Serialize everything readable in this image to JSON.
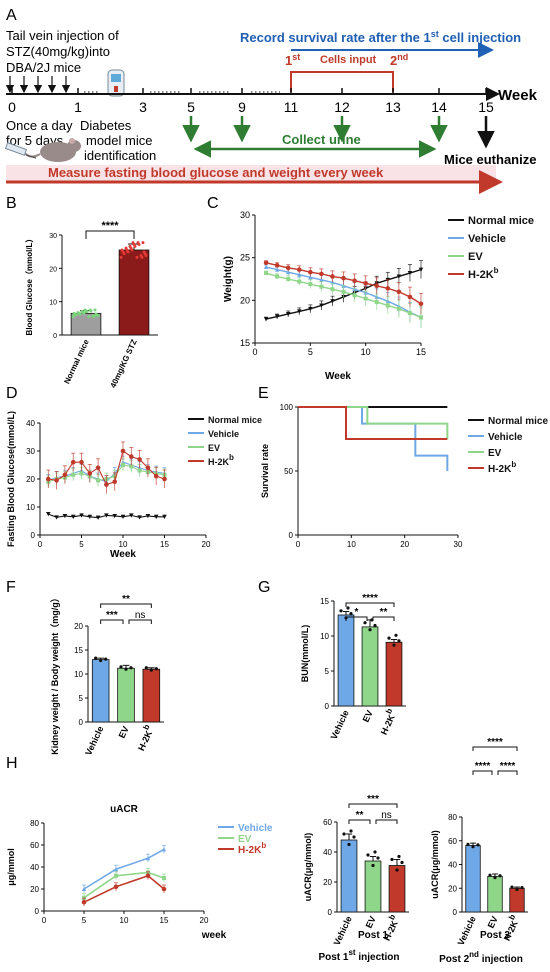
{
  "colors": {
    "normal": "#111111",
    "vehicle": "#6fa8e6",
    "ev": "#8fd68a",
    "h2kb": "#c0392b",
    "timeline_blue": "#1f5fb4",
    "timeline_red": "#c0392b",
    "timeline_green": "#2e7d32",
    "bar_normal": "#9e9e9e",
    "bar_stz": "#8b1a1a"
  },
  "panel_labels": {
    "a": "A",
    "b": "B",
    "c": "C",
    "d": "D",
    "e": "E",
    "f": "F",
    "g": "G",
    "h": "H"
  },
  "timeline": {
    "line1": "Tail vein injection of",
    "line2": "STZ(40mg/kg)into",
    "line3": "DBA/2J mice",
    "record": "Record survival rate after the 1",
    "record_sup": "st",
    "record_tail": " cell injection",
    "first": "1",
    "first_sup": "st",
    "cells_input": "Cells input",
    "second": "2",
    "second_sup": "nd",
    "week_label": "Week",
    "ticks": [
      "0",
      "1",
      "3",
      "5",
      "9",
      "11",
      "12",
      "13",
      "14",
      "15"
    ],
    "once": "Once a day",
    "days": "for 5 days",
    "diab1": "Diabetes",
    "diab2": "model mice",
    "diab3": "identification",
    "collect": "Collect urine",
    "euth": "Mice euthanize",
    "measure": "Measure fasting blood glucose and weight every week"
  },
  "chart_data": [
    {
      "id": "B",
      "type": "bar",
      "ylabel": "Blood Glucose（mmol/L）",
      "categories": [
        "Normal mice",
        "40mg/KG STZ"
      ],
      "values": [
        6.5,
        25.5
      ],
      "errors": [
        0.8,
        1.8
      ],
      "ylim": [
        0,
        30
      ],
      "yticks": [
        "0",
        "10",
        "20",
        "30"
      ],
      "significance": "****"
    },
    {
      "id": "C",
      "type": "line",
      "xlabel": "Week",
      "ylabel": "Weight(g)",
      "xlim": [
        0,
        15
      ],
      "ylim": [
        15,
        30
      ],
      "xticks": [
        "0",
        "5",
        "10",
        "15"
      ],
      "yticks": [
        "15",
        "20",
        "25",
        "30"
      ],
      "x": [
        1,
        2,
        3,
        4,
        5,
        6,
        7,
        8,
        9,
        10,
        11,
        12,
        13,
        14,
        15
      ],
      "series": [
        {
          "name": "Normal mice",
          "values": [
            17.8,
            18.1,
            18.4,
            18.7,
            19.0,
            19.4,
            19.9,
            20.4,
            20.9,
            21.4,
            22.0,
            22.4,
            22.8,
            23.2,
            23.6
          ]
        },
        {
          "name": "Vehicle",
          "values": [
            23.9,
            23.6,
            23.3,
            23.0,
            22.7,
            22.4,
            22.1,
            21.7,
            21.3,
            20.9,
            20.4,
            19.9,
            19.3,
            18.6,
            18.0
          ]
        },
        {
          "name": "EV",
          "values": [
            23.2,
            22.8,
            22.5,
            22.2,
            21.9,
            21.6,
            21.3,
            21.0,
            20.6,
            20.2,
            19.8,
            19.4,
            19.0,
            18.5,
            18.0
          ]
        },
        {
          "name": "H-2K",
          "values": [
            24.4,
            24.1,
            23.8,
            23.6,
            23.3,
            23.1,
            22.8,
            22.6,
            22.3,
            22.0,
            21.7,
            21.4,
            21.0,
            20.4,
            19.6
          ]
        }
      ],
      "legend_sup": "b"
    },
    {
      "id": "D",
      "type": "line",
      "xlabel": "Week",
      "ylabel": "Fasting Blood Glucose(mmol/L)",
      "xlim": [
        0,
        20
      ],
      "ylim": [
        0,
        40
      ],
      "xticks": [
        "0",
        "5",
        "10",
        "15",
        "20"
      ],
      "yticks": [
        "0",
        "10",
        "20",
        "30",
        "40"
      ],
      "x": [
        1,
        2,
        3,
        4,
        5,
        6,
        7,
        8,
        9,
        10,
        11,
        12,
        13,
        14,
        15
      ],
      "series": [
        {
          "name": "Normal mice",
          "values": [
            7.5,
            6.3,
            6.8,
            6.5,
            7.0,
            6.5,
            6.2,
            7.0,
            6.8,
            6.5,
            7.0,
            6.3,
            6.8,
            6.5,
            6.5
          ]
        },
        {
          "name": "Vehicle",
          "values": [
            19.5,
            20.5,
            21.0,
            22.0,
            23.0,
            21.0,
            20.0,
            19.0,
            22.0,
            26.0,
            25.0,
            24.0,
            23.0,
            22.5,
            22.0
          ]
        },
        {
          "name": "EV",
          "values": [
            19.0,
            20.0,
            20.5,
            21.5,
            22.0,
            21.0,
            19.5,
            20.0,
            21.0,
            25.0,
            24.5,
            23.0,
            22.5,
            22.0,
            21.5
          ]
        },
        {
          "name": "H-2K",
          "values": [
            20.0,
            19.5,
            21.5,
            26.0,
            26.0,
            22.0,
            24.0,
            18.0,
            19.0,
            30.0,
            28.0,
            27.0,
            24.0,
            21.0,
            20.0
          ]
        }
      ],
      "legend_sup": "b"
    },
    {
      "id": "E",
      "type": "line",
      "ylabel": "Survival rate",
      "xlim": [
        0,
        30
      ],
      "ylim": [
        0,
        100
      ],
      "xticks": [
        "0",
        "10",
        "20",
        "30"
      ],
      "yticks": [
        "0",
        "50",
        "100"
      ],
      "series": [
        {
          "name": "Normal mice",
          "steps": [
            [
              0,
              100
            ],
            [
              28,
              100
            ]
          ]
        },
        {
          "name": "Vehicle",
          "steps": [
            [
              0,
              100
            ],
            [
              12,
              100
            ],
            [
              12,
              87
            ],
            [
              22,
              87
            ],
            [
              22,
              62
            ],
            [
              28,
              62
            ],
            [
              28,
              50
            ]
          ]
        },
        {
          "name": "EV",
          "steps": [
            [
              0,
              100
            ],
            [
              13,
              100
            ],
            [
              13,
              87
            ],
            [
              28,
              87
            ],
            [
              28,
              75
            ]
          ]
        },
        {
          "name": "H-2K",
          "steps": [
            [
              0,
              100
            ],
            [
              9,
              100
            ],
            [
              9,
              75
            ],
            [
              28,
              75
            ]
          ]
        }
      ],
      "legend_sup": "b"
    },
    {
      "id": "F",
      "type": "bar",
      "ylabel": "Kidney weight / Body weight（mg/g）",
      "categories": [
        "Vehicle",
        "EV",
        "H-2K"
      ],
      "cat_sup": "b",
      "values": [
        13.0,
        11.2,
        11.0
      ],
      "errors": [
        0.3,
        0.6,
        0.3
      ],
      "ylim": [
        0,
        20
      ],
      "yticks": [
        "0",
        "5",
        "10",
        "15",
        "20"
      ],
      "significance": [
        {
          "a": 0,
          "b": 2,
          "label": "**"
        },
        {
          "a": 0,
          "b": 1,
          "label": "***"
        },
        {
          "a": 1,
          "b": 2,
          "label": "ns"
        }
      ]
    },
    {
      "id": "G",
      "type": "bar",
      "ylabel": "BUN(mmol/L)",
      "categories": [
        "Vehicle",
        "EV",
        "H-2K"
      ],
      "cat_sup": "b",
      "values": [
        13.0,
        11.3,
        9.1
      ],
      "errors": [
        0.5,
        1.0,
        0.4
      ],
      "ylim": [
        0,
        15
      ],
      "yticks": [
        "0",
        "5",
        "10",
        "15"
      ],
      "significance": [
        {
          "a": 0,
          "b": 2,
          "label": "****"
        },
        {
          "a": 0,
          "b": 1,
          "label": "*"
        },
        {
          "a": 1,
          "b": 2,
          "label": "**"
        }
      ]
    },
    {
      "id": "H1",
      "type": "line",
      "title": "uACR",
      "xlabel": "week",
      "ylabel": "μg/mmol",
      "xlim": [
        0,
        20
      ],
      "ylim": [
        0,
        80
      ],
      "xticks": [
        "0",
        "5",
        "10",
        "15",
        "20"
      ],
      "yticks": [
        "0",
        "20",
        "40",
        "60",
        "80"
      ],
      "x": [
        5,
        9,
        13,
        15
      ],
      "series": [
        {
          "name": "Vehicle",
          "values": [
            20,
            38,
            48,
            56
          ]
        },
        {
          "name": "EV",
          "values": [
            12,
            32,
            35,
            30
          ]
        },
        {
          "name": "H-2K",
          "values": [
            8,
            22,
            32,
            20
          ]
        }
      ],
      "legend_sup": "b"
    },
    {
      "id": "H2",
      "type": "bar",
      "ylabel": "uACR(μg/mmol)",
      "xlabel": "Post 1",
      "xlabel_sup": "st",
      "xlabel_tail": " injection",
      "categories": [
        "Vehicle",
        "EV",
        "H-2K"
      ],
      "cat_sup": "b",
      "values": [
        48,
        34,
        31
      ],
      "errors": [
        4,
        3,
        4
      ],
      "ylim": [
        0,
        60
      ],
      "yticks": [
        "0",
        "20",
        "40",
        "60"
      ],
      "significance": [
        {
          "a": 0,
          "b": 2,
          "label": "***"
        },
        {
          "a": 0,
          "b": 1,
          "label": "**"
        },
        {
          "a": 1,
          "b": 2,
          "label": "ns"
        }
      ]
    },
    {
      "id": "H3",
      "type": "bar",
      "ylabel": "uACR(μg/mmol)",
      "xlabel": "Post 2",
      "xlabel_sup": "nd",
      "xlabel_tail": " injection",
      "categories": [
        "Vehicle",
        "EV",
        "H-2K"
      ],
      "cat_sup": "b",
      "values": [
        56,
        30,
        20
      ],
      "errors": [
        2,
        2,
        1
      ],
      "ylim": [
        0,
        80
      ],
      "yticks": [
        "0",
        "20",
        "40",
        "60",
        "80"
      ],
      "significance": [
        {
          "a": 0,
          "b": 2,
          "label": "****"
        },
        {
          "a": 0,
          "b": 1,
          "label": "****"
        },
        {
          "a": 1,
          "b": 2,
          "label": "****"
        }
      ]
    }
  ]
}
